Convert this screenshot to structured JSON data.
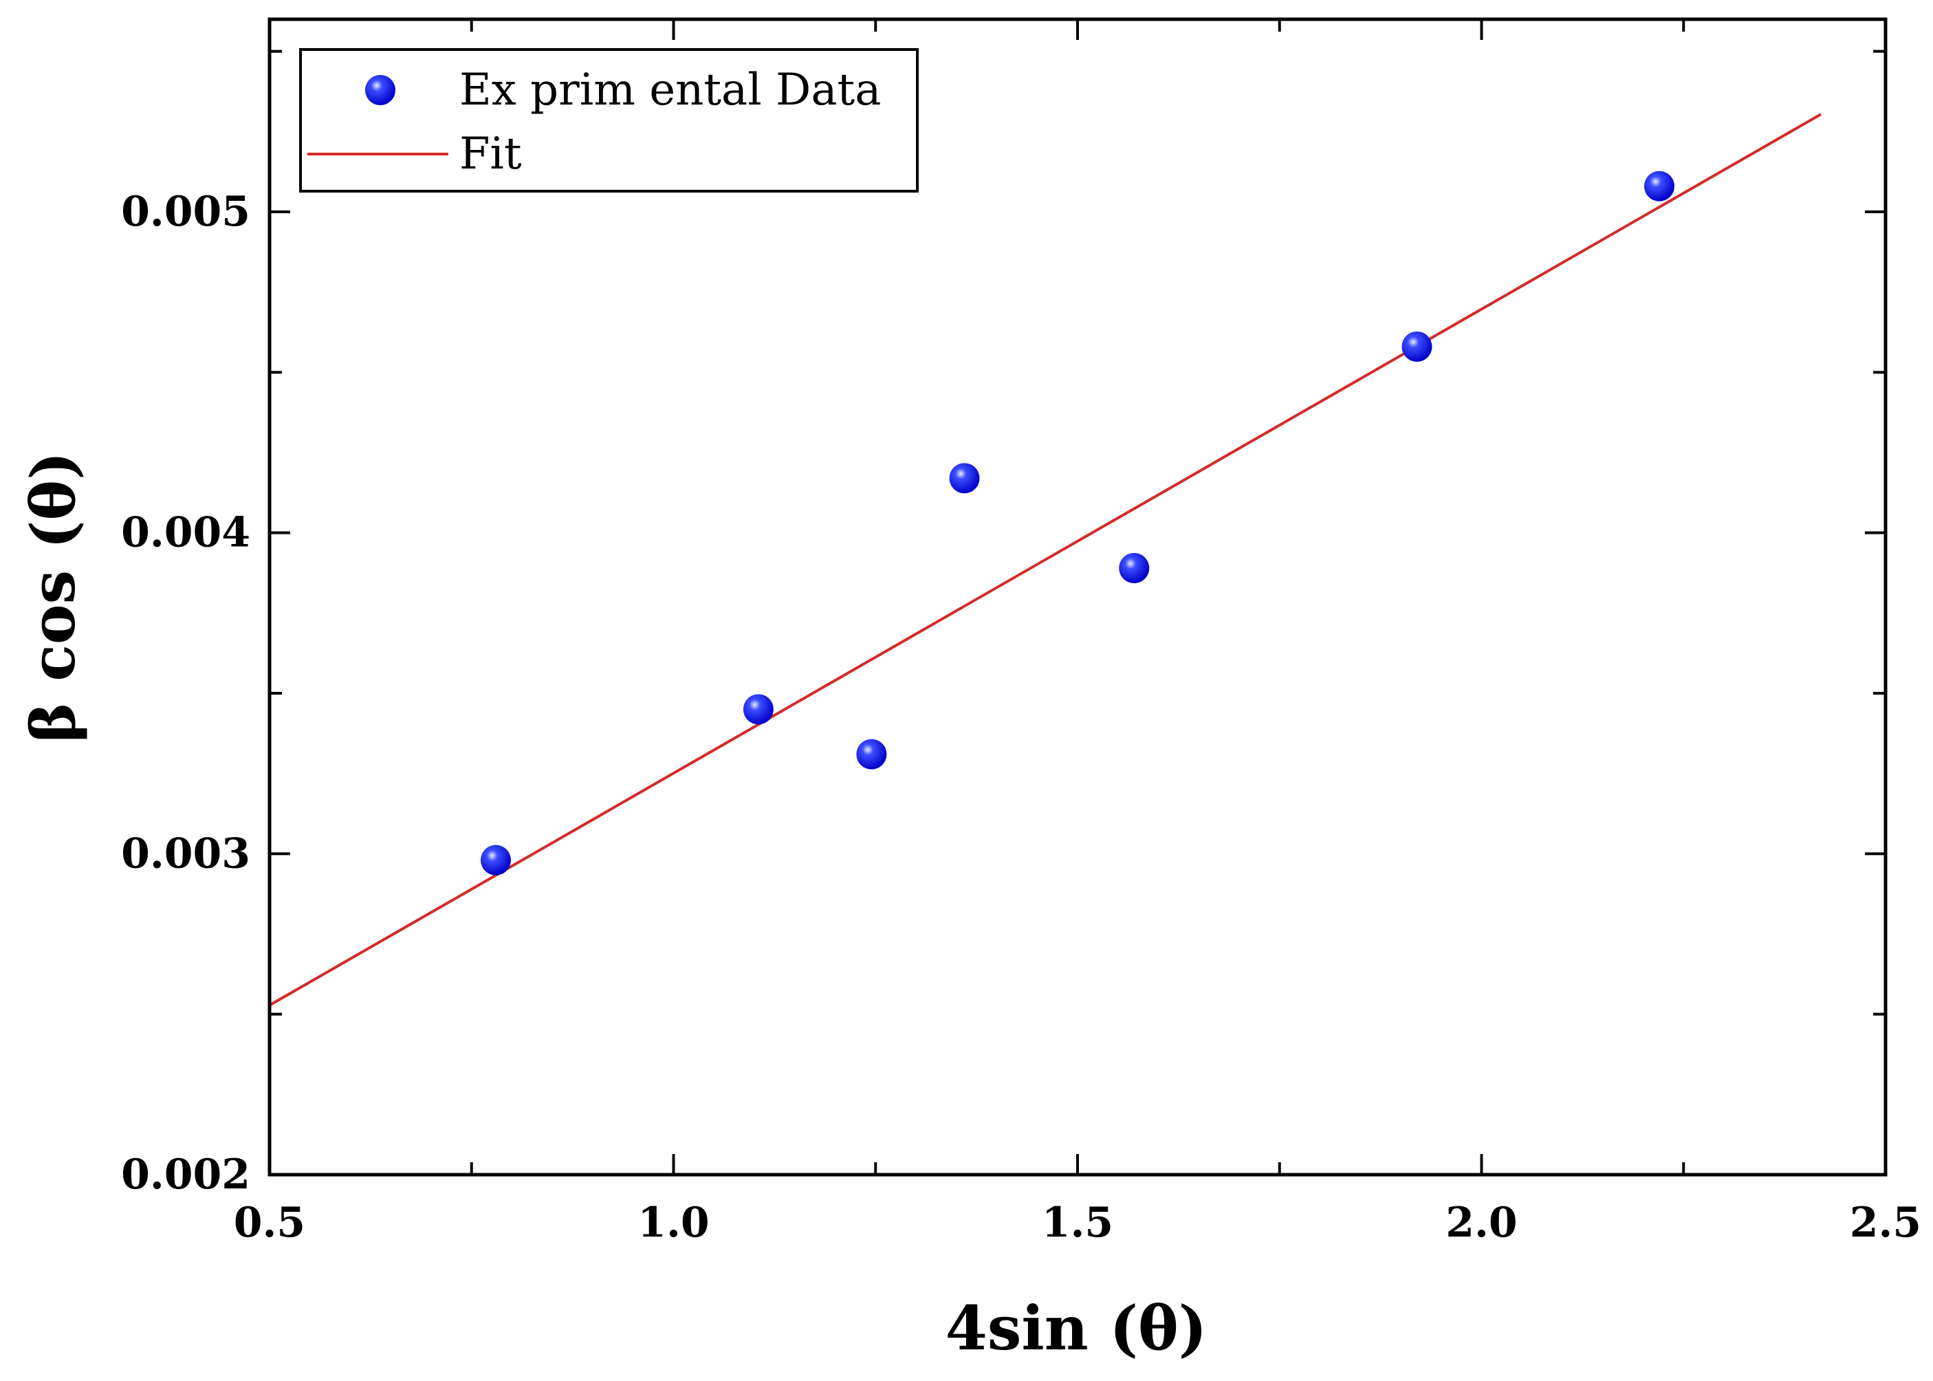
{
  "chart_data": {
    "type": "scatter",
    "title": "",
    "xlabel": "4sin (θ)",
    "ylabel": "β cos (θ)",
    "xlim": [
      0.5,
      2.5
    ],
    "ylim": [
      0.002,
      0.0056
    ],
    "x_ticks": [
      0.5,
      1.0,
      1.5,
      2.0,
      2.5
    ],
    "x_tick_labels": [
      "0.5",
      "1.0",
      "1.5",
      "2.0",
      "2.5"
    ],
    "y_ticks": [
      0.002,
      0.003,
      0.004,
      0.005
    ],
    "y_tick_labels": [
      "0.002",
      "0.003",
      "0.004",
      "0.005"
    ],
    "grid": false,
    "legend_position": "top-left",
    "series": [
      {
        "name": "Ex prim ental Data",
        "kind": "scatter",
        "color": "#1a1aff",
        "x": [
          0.78,
          1.105,
          1.245,
          1.36,
          1.57,
          1.92,
          2.22
        ],
        "y": [
          0.00298,
          0.00345,
          0.00331,
          0.00417,
          0.00389,
          0.00458,
          0.00508
        ]
      },
      {
        "name": "Fit",
        "kind": "line",
        "color": "#d42a2a",
        "x": [
          0.5,
          2.42
        ],
        "y": [
          0.002528,
          0.005304
        ]
      }
    ]
  }
}
